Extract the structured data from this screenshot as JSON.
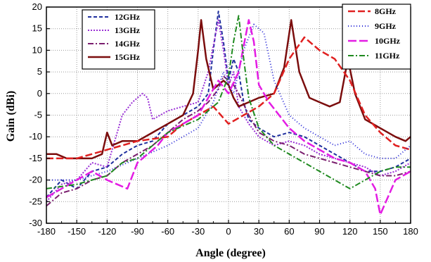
{
  "chart_data": {
    "type": "line",
    "title": "",
    "xlabel": "Angle (degree)",
    "ylabel": "Gain (dBi)",
    "xlim": [
      -180,
      180
    ],
    "ylim": [
      -30,
      20
    ],
    "xticks": [
      "-180",
      "-150",
      "-120",
      "-90",
      "-60",
      "-30",
      "0",
      "30",
      "60",
      "90",
      "120",
      "150",
      "180"
    ],
    "yticks": [
      "20",
      "15",
      "10",
      "5",
      "0",
      "-5",
      "-10",
      "-15",
      "-20",
      "-25",
      "-30"
    ],
    "grid": true,
    "legends": [
      {
        "position": "top-left",
        "entries": [
          "12GHz",
          "13GHz",
          "14GHz",
          "15GHz"
        ]
      },
      {
        "position": "top-right",
        "entries": [
          "8GHz",
          "9GHz",
          "10GHz",
          "11GHz"
        ]
      }
    ],
    "series": [
      {
        "name": "12GHz",
        "color": "#1f2f9e",
        "dash": "5,3",
        "width": 2,
        "x": [
          -180,
          -165,
          -150,
          -135,
          -120,
          -105,
          -90,
          -75,
          -60,
          -45,
          -30,
          -20,
          -15,
          -10,
          -5,
          0,
          5,
          10,
          15,
          20,
          30,
          45,
          60,
          75,
          90,
          105,
          120,
          135,
          150,
          165,
          180
        ],
        "y": [
          -24,
          -20,
          -22,
          -18,
          -17,
          -14,
          -12,
          -11,
          -7,
          -5,
          -3,
          0,
          10,
          19,
          12,
          3,
          8,
          5,
          -2,
          -6,
          -8,
          -10,
          -9,
          -10,
          -12,
          -14,
          -16,
          -18,
          -18,
          -17,
          -15
        ]
      },
      {
        "name": "13GHz",
        "color": "#9a2fd6",
        "dash": "2,2",
        "width": 2,
        "x": [
          -180,
          -165,
          -150,
          -135,
          -120,
          -105,
          -95,
          -85,
          -80,
          -75,
          -60,
          -45,
          -30,
          -20,
          -10,
          -5,
          0,
          5,
          10,
          20,
          30,
          45,
          60,
          75,
          90,
          105,
          120,
          135,
          150,
          165,
          180
        ],
        "y": [
          -25,
          -21,
          -20,
          -16,
          -17,
          -5,
          -2,
          0,
          -1,
          -6,
          -4,
          -3,
          -2,
          5,
          17,
          10,
          2,
          5,
          -3,
          -7,
          -10,
          -12,
          -11,
          -12,
          -14,
          -15,
          -16,
          -17,
          -19,
          -18,
          -16
        ]
      },
      {
        "name": "14GHz",
        "color": "#7a1e6e",
        "dash": "8,3,2,3",
        "width": 2,
        "x": [
          -180,
          -165,
          -150,
          -135,
          -120,
          -105,
          -90,
          -75,
          -60,
          -45,
          -30,
          -20,
          -10,
          -5,
          0,
          5,
          10,
          20,
          30,
          45,
          60,
          75,
          90,
          105,
          120,
          135,
          150,
          165,
          180
        ],
        "y": [
          -26,
          -23,
          -22,
          -20,
          -19,
          -16,
          -14,
          -12,
          -9,
          -6,
          -4,
          -2,
          1,
          4,
          3,
          2,
          0,
          -5,
          -9,
          -11,
          -12,
          -14,
          -15,
          -16,
          -17,
          -18,
          -19,
          -19,
          -18
        ]
      },
      {
        "name": "15GHz",
        "color": "#7b0d0d",
        "dash": "",
        "width": 2.5,
        "x": [
          -180,
          -170,
          -160,
          -150,
          -135,
          -125,
          -120,
          -115,
          -105,
          -90,
          -75,
          -60,
          -45,
          -35,
          -30,
          -27,
          -22,
          -15,
          -5,
          0,
          5,
          10,
          20,
          30,
          45,
          55,
          62,
          70,
          80,
          90,
          100,
          110,
          118,
          125,
          135,
          150,
          165,
          175,
          180
        ],
        "y": [
          -14,
          -14,
          -15,
          -15,
          -15,
          -14,
          -9,
          -12,
          -11,
          -11,
          -9,
          -7,
          -5,
          0,
          10,
          17,
          8,
          1,
          3,
          2,
          -1,
          -3,
          -2,
          -1,
          0,
          6,
          17,
          5,
          -1,
          -2,
          -3,
          -2,
          8,
          0,
          -6,
          -8,
          -10,
          -11,
          -10
        ]
      },
      {
        "name": "8GHz",
        "color": "#e02020",
        "dash": "10,4",
        "width": 2.5,
        "x": [
          -180,
          -150,
          -120,
          -90,
          -60,
          -45,
          -30,
          -15,
          0,
          15,
          30,
          45,
          60,
          75,
          90,
          105,
          120,
          135,
          150,
          165,
          180
        ],
        "y": [
          -15,
          -15,
          -13,
          -11,
          -10,
          -7,
          -5,
          -3,
          -7,
          -5,
          -3,
          0,
          8,
          13,
          10,
          8,
          3,
          -5,
          -9,
          -12,
          -13
        ]
      },
      {
        "name": "9GHz",
        "color": "#2424d6",
        "dash": "1,3",
        "width": 2,
        "x": [
          -180,
          -150,
          -120,
          -90,
          -60,
          -30,
          -15,
          -5,
          0,
          5,
          15,
          25,
          35,
          45,
          60,
          75,
          90,
          105,
          120,
          135,
          150,
          165,
          180
        ],
        "y": [
          -20,
          -20,
          -18,
          -15,
          -12,
          -8,
          -2,
          5,
          2,
          0,
          10,
          16,
          14,
          3,
          -5,
          -8,
          -10,
          -12,
          -11,
          -14,
          -15,
          -15,
          -12
        ]
      },
      {
        "name": "10GHz",
        "color": "#e31ce3",
        "dash": "12,4",
        "width": 2.5,
        "x": [
          -180,
          -150,
          -135,
          -120,
          -100,
          -90,
          -80,
          -70,
          -60,
          -30,
          -10,
          0,
          10,
          20,
          25,
          30,
          40,
          60,
          75,
          90,
          105,
          120,
          135,
          145,
          150,
          165,
          180
        ],
        "y": [
          -24,
          -20,
          -18,
          -20,
          -22,
          -16,
          -14,
          -12,
          -9,
          -5,
          3,
          0,
          5,
          17,
          12,
          2,
          -2,
          -8,
          -11,
          -13,
          -15,
          -16,
          -18,
          -22,
          -28,
          -20,
          -18
        ]
      },
      {
        "name": "11GHz",
        "color": "#1f8a1f",
        "dash": "8,3,2,3",
        "width": 2,
        "x": [
          -180,
          -150,
          -120,
          -105,
          -90,
          -75,
          -60,
          -30,
          -10,
          0,
          5,
          10,
          15,
          20,
          30,
          45,
          60,
          75,
          90,
          105,
          120,
          135,
          150,
          165,
          180
        ],
        "y": [
          -22,
          -21,
          -19,
          -16,
          -15,
          -12,
          -9,
          -6,
          -2,
          4,
          12,
          18,
          8,
          -1,
          -8,
          -12,
          -14,
          -16,
          -18,
          -20,
          -22,
          -20,
          -18,
          -17,
          -17
        ]
      }
    ]
  }
}
